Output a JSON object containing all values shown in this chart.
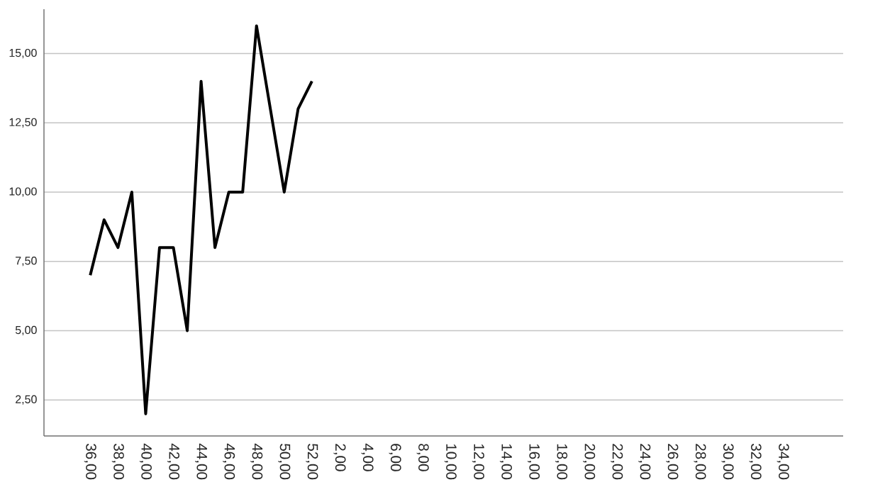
{
  "chart_data": {
    "type": "line",
    "categories": [
      "36,00",
      null,
      "38,00",
      null,
      "40,00",
      null,
      "42,00",
      null,
      "44,00",
      null,
      "46,00",
      null,
      "48,00",
      null,
      "50,00",
      null,
      "52,00",
      null,
      "2,00",
      null,
      "4,00",
      null,
      "6,00",
      null,
      "8,00",
      null,
      "10,00",
      null,
      "12,00",
      null,
      "14,00",
      null,
      "16,00",
      null,
      "18,00",
      null,
      "20,00",
      null,
      "22,00",
      null,
      "24,00",
      null,
      "26,00",
      null,
      "28,00",
      null,
      "30,00",
      null,
      "32,00",
      null,
      "34,00",
      null
    ],
    "values": [
      7,
      9,
      8,
      10,
      2,
      8,
      8,
      5,
      14,
      8,
      10,
      10,
      16,
      13,
      10,
      13,
      14,
      null,
      null,
      null,
      null,
      null,
      null,
      null,
      null,
      null,
      null,
      null,
      null,
      null,
      null,
      null,
      null,
      null,
      null,
      null,
      null,
      null,
      null,
      null,
      null,
      null,
      null,
      null,
      null,
      null,
      null,
      null,
      null,
      null,
      null,
      null
    ],
    "color": "#000000",
    "ylim": [
      1.2,
      16.6
    ],
    "yticks": [
      {
        "value": 2.5,
        "label": "2,50"
      },
      {
        "value": 5,
        "label": "5,00"
      },
      {
        "value": 7.5,
        "label": "7,50"
      },
      {
        "value": 10,
        "label": "10,00"
      },
      {
        "value": 12.5,
        "label": "12,50"
      },
      {
        "value": 15,
        "label": "15,00"
      }
    ],
    "grid": "y",
    "line_style": "solid"
  }
}
